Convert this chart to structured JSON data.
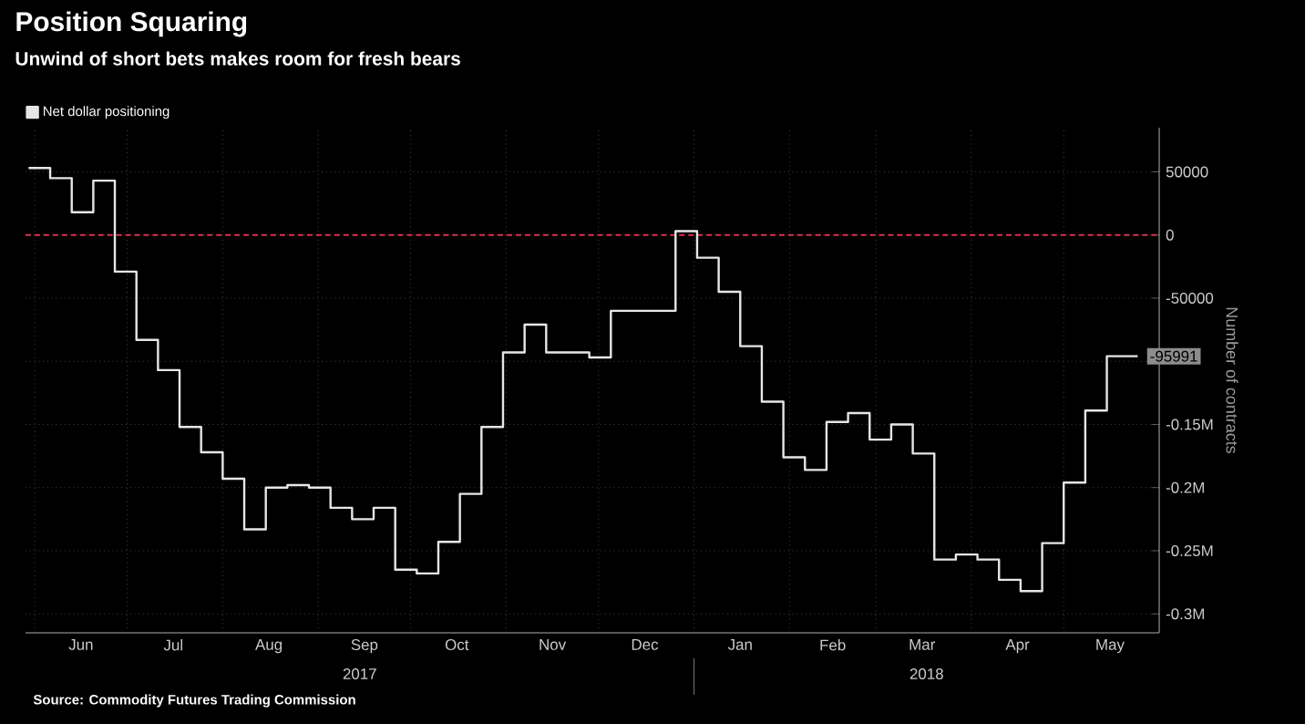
{
  "chart_data": {
    "type": "step",
    "title": "Position Squaring",
    "subtitle": "Unwind of short bets makes room for fresh bears",
    "ylabel": "Number of contracts",
    "series": [
      {
        "name": "Net dollar positioning",
        "color": "#e6e6e6",
        "x": [
          "2017-05-30",
          "2017-06-06",
          "2017-06-13",
          "2017-06-20",
          "2017-06-27",
          "2017-07-04",
          "2017-07-11",
          "2017-07-18",
          "2017-07-25",
          "2017-08-01",
          "2017-08-08",
          "2017-08-15",
          "2017-08-22",
          "2017-08-29",
          "2017-09-05",
          "2017-09-12",
          "2017-09-19",
          "2017-09-26",
          "2017-10-03",
          "2017-10-10",
          "2017-10-17",
          "2017-10-24",
          "2017-10-31",
          "2017-11-07",
          "2017-11-14",
          "2017-11-21",
          "2017-11-28",
          "2017-12-05",
          "2017-12-12",
          "2017-12-19",
          "2017-12-26",
          "2018-01-02",
          "2018-01-09",
          "2018-01-16",
          "2018-01-23",
          "2018-01-30",
          "2018-02-06",
          "2018-02-13",
          "2018-02-20",
          "2018-02-27",
          "2018-03-06",
          "2018-03-13",
          "2018-03-20",
          "2018-03-27",
          "2018-04-03",
          "2018-04-10",
          "2018-04-17",
          "2018-04-24",
          "2018-05-01",
          "2018-05-08",
          "2018-05-15",
          "2018-05-25"
        ],
        "values": [
          53000,
          45000,
          18000,
          43000,
          -29000,
          -83000,
          -107000,
          -152000,
          -172000,
          -193000,
          -233000,
          -200000,
          -198000,
          -200000,
          -216000,
          -225000,
          -216000,
          -265000,
          -268000,
          -243000,
          -205000,
          -152000,
          -93000,
          -71000,
          -93000,
          -93000,
          -97000,
          -60000,
          -60000,
          -60000,
          3000,
          -18000,
          -45000,
          -88000,
          -132000,
          -176000,
          -186000,
          -148000,
          -141000,
          -162000,
          -150000,
          -173000,
          -257000,
          -253000,
          -257000,
          -273000,
          -282000,
          -244000,
          -196000,
          -139000,
          -95991,
          -95991
        ]
      }
    ],
    "xlim": [
      "2017-05-29",
      "2018-06-01"
    ],
    "ylim": [
      -315000,
      85000
    ],
    "xticks": [
      {
        "value": "2017-06-01",
        "label": null
      },
      {
        "value": "2017-06-16",
        "label": "Jun"
      },
      {
        "value": "2017-07-01",
        "label": null
      },
      {
        "value": "2017-07-16",
        "label": "Jul"
      },
      {
        "value": "2017-08-01",
        "label": null
      },
      {
        "value": "2017-08-16",
        "label": "Aug"
      },
      {
        "value": "2017-09-01",
        "label": null
      },
      {
        "value": "2017-09-16",
        "label": "Sep"
      },
      {
        "value": "2017-10-01",
        "label": null
      },
      {
        "value": "2017-10-16",
        "label": "Oct"
      },
      {
        "value": "2017-11-01",
        "label": null
      },
      {
        "value": "2017-11-16",
        "label": "Nov"
      },
      {
        "value": "2017-12-01",
        "label": null
      },
      {
        "value": "2017-12-16",
        "label": "Dec"
      },
      {
        "value": "2018-01-01",
        "label": null
      },
      {
        "value": "2018-01-16",
        "label": "Jan"
      },
      {
        "value": "2018-02-01",
        "label": null
      },
      {
        "value": "2018-02-15",
        "label": "Feb"
      },
      {
        "value": "2018-03-01",
        "label": null
      },
      {
        "value": "2018-03-16",
        "label": "Mar"
      },
      {
        "value": "2018-04-01",
        "label": null
      },
      {
        "value": "2018-04-16",
        "label": "Apr"
      },
      {
        "value": "2018-05-01",
        "label": null
      },
      {
        "value": "2018-05-16",
        "label": "May"
      },
      {
        "value": "2018-06-01",
        "label": null
      }
    ],
    "yticks": [
      50000,
      0,
      {
        "value": -50000,
        "label": "-50000"
      },
      {
        "value": -100000,
        "label": null
      },
      {
        "value": -150000,
        "label": "-0.15M"
      },
      {
        "value": -200000,
        "label": "-0.2M"
      },
      {
        "value": -250000,
        "label": "-0.25M"
      },
      {
        "value": -300000,
        "label": "-0.3M"
      }
    ],
    "ref_lines": [
      {
        "axis": "y",
        "value": 0,
        "color": "#d9304f",
        "line_style": "dashed"
      }
    ],
    "annotations": [
      "Source: Commodity Futures Trading Commission",
      "2017",
      "2018",
      {
        "text": "-95991",
        "x": "2018-05-25",
        "y": -95991
      }
    ],
    "grid": true,
    "legend": "top left",
    "marker": "none",
    "line_style": "solid"
  }
}
